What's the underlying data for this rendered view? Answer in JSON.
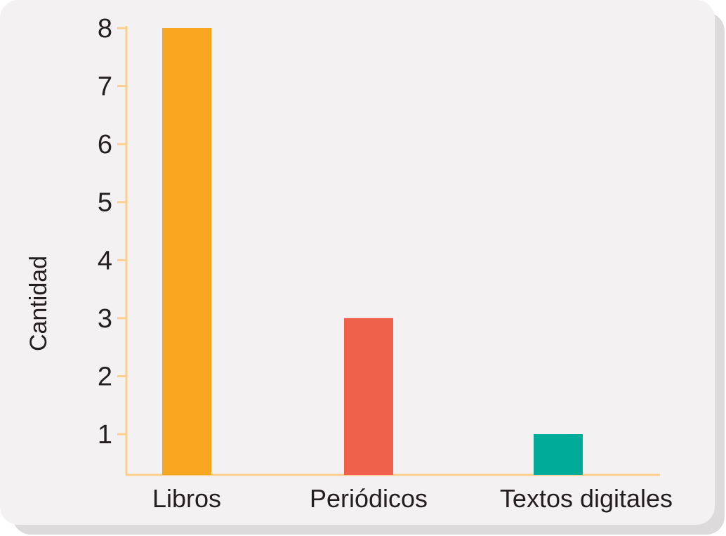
{
  "chart_data": {
    "type": "bar",
    "categories": [
      "Libros",
      "Periódicos",
      "Textos digitales"
    ],
    "values": [
      8,
      3,
      1
    ],
    "colors": [
      "#f8a51f",
      "#ef614a",
      "#00ab9a"
    ],
    "axis_color": "#fcd08c",
    "ylabel": "Cantidad",
    "xlabel": "",
    "yticks": [
      "1",
      "2",
      "3",
      "4",
      "5",
      "6",
      "7",
      "8"
    ],
    "ylim": [
      0.3,
      8
    ],
    "grid": false
  }
}
